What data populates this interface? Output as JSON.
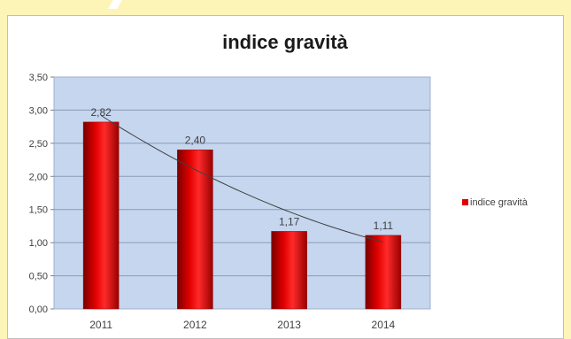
{
  "chart_data": {
    "type": "bar",
    "title": "indice gravità",
    "categories": [
      "2011",
      "2012",
      "2013",
      "2014"
    ],
    "series": [
      {
        "name": "indice gravità",
        "values": [
          2.82,
          2.4,
          1.17,
          1.11
        ]
      }
    ],
    "data_labels": [
      "2,82",
      "2,40",
      "1,17",
      "1,11"
    ],
    "y_ticks": [
      "0,00",
      "0,50",
      "1,00",
      "1,50",
      "2,00",
      "2,50",
      "3,00",
      "3,50"
    ],
    "y_tick_values": [
      0,
      0.5,
      1,
      1.5,
      2,
      2.5,
      3,
      3.5
    ],
    "ylim": [
      0,
      3.5
    ],
    "xlabel": "",
    "ylabel": "",
    "grid": true,
    "trendline": true,
    "legend_position": "right",
    "colors": {
      "bar": "#e00000",
      "bar_dark": "#8c0000",
      "plot_bg": "#c5d6ee",
      "grid": "#8a9bb8",
      "trend": "#404040",
      "page_bg": "#fdf4b8"
    }
  }
}
